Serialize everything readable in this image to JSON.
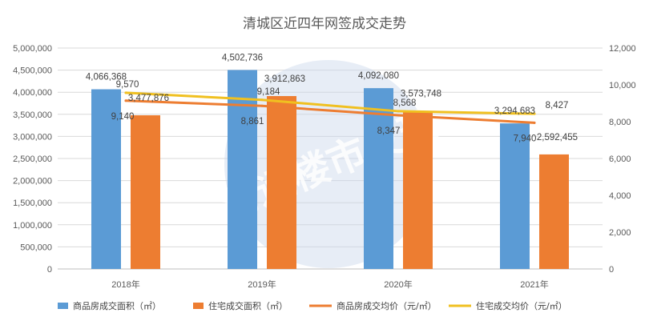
{
  "chart_data": {
    "type": "bar",
    "title": "清城区近四年网签成交走势",
    "categories": [
      "2018年",
      "2019年",
      "2020年",
      "2021年"
    ],
    "y_left": {
      "min": 0,
      "max": 5000000,
      "step": 500000,
      "ticks": [
        "0",
        "500,000",
        "1,000,000",
        "1,500,000",
        "2,000,000",
        "2,500,000",
        "3,000,000",
        "3,500,000",
        "4,000,000",
        "4,500,000",
        "5,000,000"
      ]
    },
    "y_right": {
      "min": 0,
      "max": 12000,
      "step": 2000,
      "ticks": [
        "0",
        "2,000",
        "4,000",
        "6,000",
        "8,000",
        "10,000",
        "12,000"
      ]
    },
    "series": [
      {
        "name": "商品房成交面积（㎡）",
        "kind": "bar",
        "axis": "left",
        "color": "#5b9bd5",
        "values": [
          4066368,
          4502736,
          4092080,
          3294683
        ],
        "labels": [
          "4,066,368",
          "4,502,736",
          "4,092,080",
          "3,294,683"
        ]
      },
      {
        "name": "住宅成交面积（㎡）",
        "kind": "bar",
        "axis": "left",
        "color": "#ed7d31",
        "values": [
          3477876,
          3912863,
          3573748,
          2592455
        ],
        "labels": [
          "3,477,876",
          "3,912,863",
          "3,573,748",
          "2,592,455"
        ]
      },
      {
        "name": "商品房成交均价（元/㎡）",
        "kind": "line",
        "axis": "right",
        "color": "#ed7d31",
        "values": [
          9140,
          8861,
          8347,
          7940
        ],
        "labels": [
          "9,140",
          "8,861",
          "8,347",
          "7,940"
        ]
      },
      {
        "name": "住宅成交均价（元/㎡）",
        "kind": "line",
        "axis": "right",
        "color": "#f0c020",
        "values": [
          9570,
          9184,
          8568,
          8427
        ],
        "labels": [
          "9,570",
          "9,184",
          "8,568",
          "8,427"
        ]
      }
    ],
    "grid": true,
    "legend_position": "bottom"
  },
  "watermark": "清远楼市发现"
}
